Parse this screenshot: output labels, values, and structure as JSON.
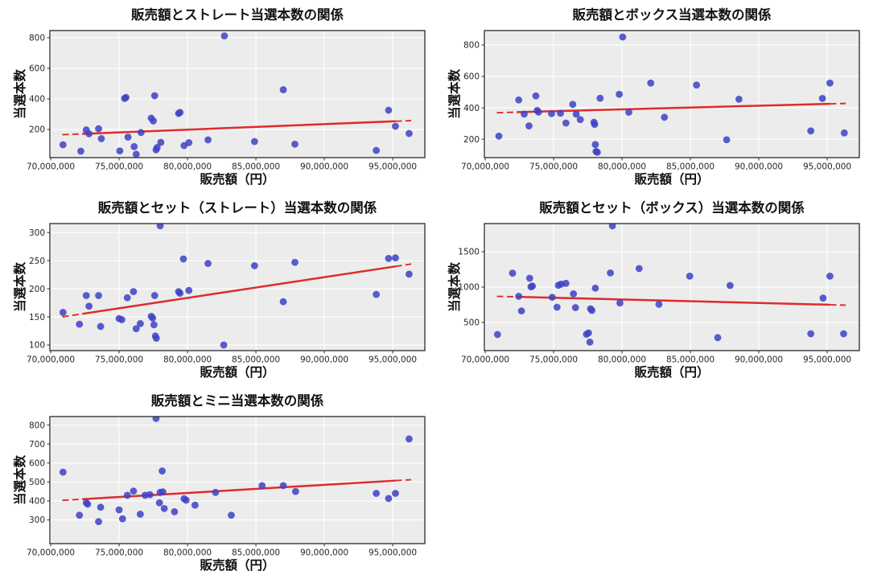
{
  "figure": {
    "background": "#ffffff",
    "axes_background": "#ececec",
    "grid_color": "#ffffff",
    "spine_color": "#2a2a2a",
    "dot_color": "#3d42c4",
    "dot_opacity": 0.85,
    "trend_color": "#e02a2a",
    "tick_text_color": "#262626"
  },
  "chart_data": [
    {
      "type": "scatter",
      "title": "販売額とストレート当選本数の関係",
      "xlabel": "販売額（円）",
      "ylabel": "当選本数",
      "xlim": [
        69940000,
        97350000
      ],
      "ylim": [
        16,
        847
      ],
      "x_ticks": [
        70000000,
        75000000,
        80000000,
        85000000,
        90000000,
        95000000
      ],
      "x_tick_labels": [
        "70,000,000",
        "75,000,000",
        "80,000,000",
        "85,000,000",
        "90,000,000",
        "95,000,000"
      ],
      "y_ticks": [
        200,
        400,
        600,
        800
      ],
      "x": [
        70900000,
        72200000,
        72600000,
        72800000,
        73500000,
        73700000,
        75050000,
        75400000,
        75500000,
        75650000,
        76100000,
        76250000,
        76600000,
        77350000,
        77500000,
        77600000,
        77700000,
        77780000,
        78050000,
        79350000,
        79450000,
        79750000,
        80100000,
        81500000,
        82700000,
        84900000,
        87000000,
        87850000,
        93800000,
        94700000,
        95200000,
        96200000
      ],
      "y": [
        100,
        58,
        197,
        172,
        205,
        140,
        60,
        403,
        410,
        150,
        88,
        38,
        180,
        274,
        256,
        421,
        67,
        82,
        116,
        305,
        312,
        95,
        114,
        132,
        812,
        121,
        460,
        104,
        63,
        326,
        221,
        174
      ],
      "trend": {
        "x1": 70850000,
        "y1": 166,
        "x2": 96350000,
        "y2": 258
      }
    },
    {
      "type": "scatter",
      "title": "販売額とボックス当選本数の関係",
      "xlabel": "販売額（円）",
      "ylabel": "当選本数",
      "xlim": [
        69940000,
        97350000
      ],
      "ylim": [
        83,
        892
      ],
      "x_ticks": [
        70000000,
        75000000,
        80000000,
        85000000,
        90000000,
        95000000
      ],
      "x_tick_labels": [
        "70,000,000",
        "75,000,000",
        "80,000,000",
        "85,000,000",
        "90,000,000",
        "95,000,000"
      ],
      "y_ticks": [
        200,
        400,
        600,
        800
      ],
      "x": [
        71000000,
        72450000,
        72850000,
        73200000,
        73700000,
        73800000,
        73900000,
        74850000,
        75500000,
        75900000,
        76400000,
        76650000,
        76950000,
        77950000,
        78000000,
        78050000,
        78100000,
        78200000,
        78400000,
        79800000,
        80050000,
        80500000,
        82100000,
        83100000,
        85450000,
        87650000,
        88550000,
        93800000,
        94650000,
        95200000,
        96250000
      ],
      "y": [
        220,
        450,
        360,
        285,
        476,
        383,
        373,
        363,
        366,
        303,
        422,
        360,
        325,
        308,
        295,
        166,
        122,
        117,
        461,
        486,
        851,
        372,
        558,
        340,
        545,
        197,
        455,
        253,
        460,
        558,
        240
      ],
      "trend": {
        "x1": 70850000,
        "y1": 369,
        "x2": 96350000,
        "y2": 428
      }
    },
    {
      "type": "scatter",
      "title": "販売額とセット（ストレート）当選本数の関係",
      "xlabel": "販売額（円）",
      "ylabel": "当選本数",
      "xlim": [
        69940000,
        97350000
      ],
      "ylim": [
        90,
        316
      ],
      "x_ticks": [
        70000000,
        75000000,
        80000000,
        85000000,
        90000000,
        95000000
      ],
      "x_tick_labels": [
        "70,000,000",
        "75,000,000",
        "80,000,000",
        "85,000,000",
        "90,000,000",
        "95,000,000"
      ],
      "y_ticks": [
        100,
        150,
        200,
        250,
        300
      ],
      "x": [
        70900000,
        72100000,
        72600000,
        72800000,
        73500000,
        73650000,
        75000000,
        75200000,
        75600000,
        76050000,
        76250000,
        76550000,
        77350000,
        77450000,
        77550000,
        77600000,
        77650000,
        77720000,
        78000000,
        79350000,
        79450000,
        79700000,
        80100000,
        81500000,
        82650000,
        84900000,
        87000000,
        87850000,
        93800000,
        94700000,
        95200000,
        96200000
      ],
      "y": [
        158,
        137,
        188,
        169,
        188,
        133,
        147,
        145,
        184,
        195,
        129,
        138,
        151,
        148,
        136,
        188,
        116,
        112,
        312,
        195,
        192,
        253,
        197,
        245,
        100,
        241,
        177,
        247,
        190,
        254,
        255,
        226
      ],
      "trend": {
        "x1": 70850000,
        "y1": 150,
        "x2": 96350000,
        "y2": 244
      }
    },
    {
      "type": "scatter",
      "title": "販売額とセット（ボックス）当選本数の関係",
      "xlabel": "販売額（円）",
      "ylabel": "当選本数",
      "xlim": [
        69940000,
        97350000
      ],
      "ylim": [
        102,
        1898
      ],
      "x_ticks": [
        70000000,
        75000000,
        80000000,
        85000000,
        90000000,
        95000000
      ],
      "x_tick_labels": [
        "70,000,000",
        "75,000,000",
        "80,000,000",
        "85,000,000",
        "90,000,000",
        "95,000,000"
      ],
      "y_ticks": [
        500,
        1000,
        1500
      ],
      "x": [
        70900000,
        72000000,
        72450000,
        72650000,
        73250000,
        73350000,
        73450000,
        74900000,
        75250000,
        75350000,
        75550000,
        75900000,
        76450000,
        76600000,
        77400000,
        77550000,
        77650000,
        77700000,
        77800000,
        78050000,
        79150000,
        79300000,
        79850000,
        81250000,
        82700000,
        84950000,
        87000000,
        87900000,
        93800000,
        94700000,
        95200000,
        96200000
      ],
      "y": [
        330,
        1197,
        870,
        663,
        1125,
        1004,
        1015,
        856,
        716,
        1026,
        1042,
        1053,
        905,
        710,
        333,
        352,
        223,
        693,
        670,
        985,
        1200,
        1865,
        775,
        1262,
        757,
        1155,
        285,
        1023,
        340,
        845,
        1155,
        340
      ],
      "trend": {
        "x1": 70850000,
        "y1": 869,
        "x2": 96350000,
        "y2": 745
      }
    },
    {
      "type": "scatter",
      "title": "販売額とミニ当選本数の関係",
      "xlabel": "販売額（円）",
      "ylabel": "当選本数",
      "xlim": [
        69940000,
        97350000
      ],
      "ylim": [
        175,
        845
      ],
      "x_ticks": [
        70000000,
        75000000,
        80000000,
        85000000,
        90000000,
        95000000
      ],
      "x_tick_labels": [
        "70,000,000",
        "75,000,000",
        "80,000,000",
        "85,000,000",
        "90,000,000",
        "95,000,000"
      ],
      "y_ticks": [
        300,
        400,
        500,
        600,
        700,
        800
      ],
      "x": [
        70900000,
        72100000,
        72600000,
        72700000,
        73500000,
        73650000,
        75000000,
        75250000,
        75600000,
        76050000,
        76550000,
        76900000,
        77250000,
        77700000,
        77950000,
        78000000,
        78150000,
        78200000,
        78300000,
        79050000,
        79750000,
        79900000,
        80550000,
        82050000,
        83200000,
        85450000,
        87000000,
        87900000,
        93800000,
        94700000,
        95200000,
        96200000
      ],
      "y": [
        552,
        325,
        391,
        383,
        291,
        367,
        353,
        306,
        430,
        452,
        330,
        430,
        433,
        835,
        390,
        445,
        558,
        448,
        360,
        343,
        412,
        404,
        378,
        445,
        325,
        481,
        481,
        450,
        440,
        413,
        440,
        727
      ],
      "trend": {
        "x1": 70850000,
        "y1": 403,
        "x2": 96350000,
        "y2": 512
      }
    }
  ]
}
